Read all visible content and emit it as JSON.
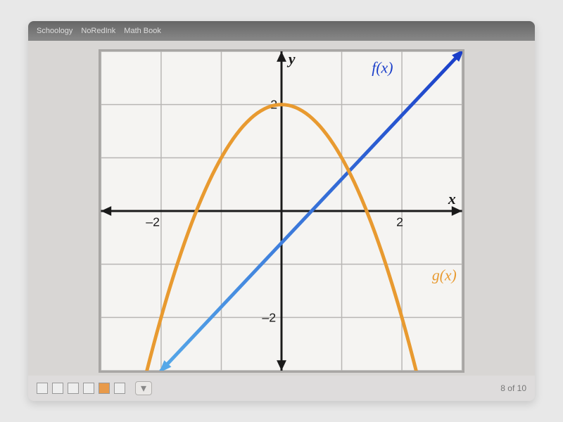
{
  "chart": {
    "type": "line",
    "background_color": "#f5f4f2",
    "frame_color": "#a8a6a4",
    "grid_color": "#b8b6b4",
    "axis_color": "#1a1a1a",
    "axes": {
      "x_label": "x",
      "y_label": "y",
      "x_label_fontsize": 22,
      "y_label_fontsize": 22,
      "tick_fontsize": 18,
      "xlim": [
        -3,
        3
      ],
      "ylim": [
        -3,
        3
      ],
      "xticks": [
        -2,
        2
      ],
      "yticks": [
        -2,
        2
      ],
      "axis_width": 3,
      "arrow_size": 10
    },
    "grid": {
      "visible": true,
      "step": 1
    },
    "series": [
      {
        "name": "f(x)",
        "label": "f(x)",
        "type": "line-gradient",
        "color_start": "#1a3ec9",
        "color_end": "#56a8e8",
        "line_width": 5,
        "points": [
          [
            -2,
            -3
          ],
          [
            3,
            3
          ]
        ],
        "label_pos": [
          1.5,
          2.6
        ],
        "label_color": "#1a3ec9",
        "label_fontsize": 22,
        "arrows": true
      },
      {
        "name": "g(x)",
        "label": "g(x)",
        "type": "parabola",
        "color": "#e89a30",
        "line_width": 5,
        "vertex": [
          0,
          2
        ],
        "coef": -1,
        "x_range": [
          -2.3,
          2.3
        ],
        "label_pos": [
          2.5,
          -1.3
        ],
        "label_color": "#e89a30",
        "label_fontsize": 22,
        "arrows": true
      }
    ]
  },
  "ui": {
    "top_tabs": [
      "Schoology",
      "NoRedInk",
      "Math Book"
    ],
    "page_indicator": "8 of 10"
  }
}
